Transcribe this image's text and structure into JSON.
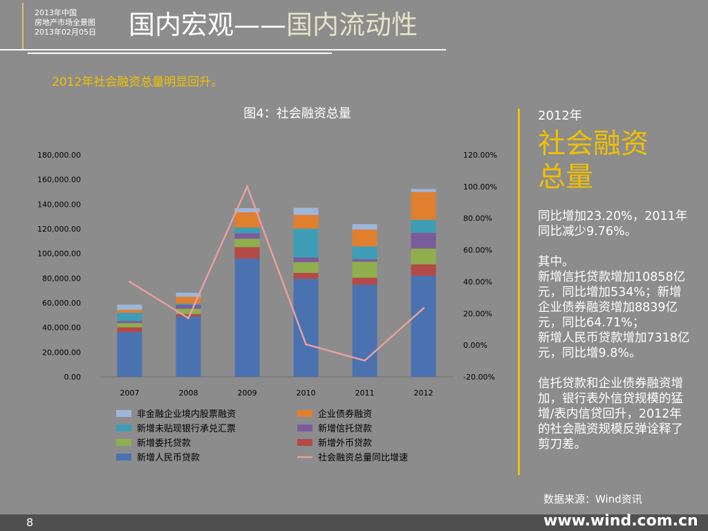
{
  "header": {
    "subtitle_lines": [
      "2013年中国",
      "房地产市场全景图",
      "2013年02月05日"
    ],
    "title_main": "国内宏观",
    "title_dash": "——",
    "title_sub": "国内流动性"
  },
  "headline": "2012年社会融资总量明显回升。",
  "chart_data": {
    "type": "bar",
    "title": "图4：社会融资总量",
    "categories": [
      "2007",
      "2008",
      "2009",
      "2010",
      "2011",
      "2012"
    ],
    "stacked": true,
    "series": [
      {
        "name": "新增人民币贷款",
        "color": "#4a72b0",
        "values": [
          36300,
          49000,
          95900,
          79500,
          74700,
          82000
        ]
      },
      {
        "name": "新增外币贷款",
        "color": "#b34a48",
        "values": [
          3900,
          1900,
          9300,
          4800,
          5700,
          9200
        ]
      },
      {
        "name": "新增委托贷款",
        "color": "#8fae4e",
        "values": [
          3400,
          4300,
          6800,
          8700,
          13000,
          12800
        ]
      },
      {
        "name": "新增信托贷款",
        "color": "#7a5c9a",
        "values": [
          1700,
          3100,
          4400,
          3900,
          2000,
          12800
        ]
      },
      {
        "name": "新增未贴现银行承兑汇票",
        "color": "#3e9eb5",
        "values": [
          6700,
          1100,
          4600,
          23300,
          10300,
          10500
        ]
      },
      {
        "name": "企业债券融资",
        "color": "#e07f2e",
        "values": [
          2300,
          5500,
          12400,
          11100,
          13700,
          22600
        ]
      },
      {
        "name": "非金融企业境内股票融资",
        "color": "#9fb6d9",
        "values": [
          4300,
          3300,
          3400,
          5800,
          4400,
          2500
        ]
      }
    ],
    "line_series": {
      "name": "社会融资总量同比增速",
      "color": "#e8a0a0",
      "axis": "right",
      "values": [
        40.0,
        17.0,
        100.0,
        0.5,
        -9.76,
        23.2
      ]
    },
    "y_left": {
      "min": 0,
      "max": 180000,
      "step": 20000,
      "tick_labels": [
        "0.00",
        "20,000.00",
        "40,000.00",
        "60,000.00",
        "80,000.00",
        "100,000.00",
        "120,000.00",
        "140,000.00",
        "160,000.00",
        "180,000.00"
      ]
    },
    "y_right": {
      "min": -20,
      "max": 120,
      "step": 20,
      "tick_labels": [
        "-20.00%",
        "0.00%",
        "20.00%",
        "40.00%",
        "60.00%",
        "80.00%",
        "100.00%",
        "120.00%"
      ]
    },
    "grid": false,
    "legend_placement": "bottom",
    "legend_order": [
      "非金融企业境内股票融资",
      "企业债券融资",
      "新增未贴现银行承兑汇票",
      "新增信托贷款",
      "新增委托贷款",
      "新增外币贷款",
      "新增人民币贷款",
      "社会融资总量同比增速"
    ]
  },
  "panel": {
    "year": "2012年",
    "big_line1": "社会融资",
    "big_line2": "总量",
    "text": "同比增加23.20%，2011年同比减少9.76%。\n\n其中。\n新增信托贷款增加10858亿元，同比增加534%；新增企业债券融资增加8839亿元，同比64.71%；\n新增人民币贷款增加7318亿元，同比增9.8%。\n\n信托贷款和企业债券融资增加，银行表外信贷规模的猛增/表内信贷回升，2012年的社会融资规模反弹诠释了剪刀差。"
  },
  "source": "数据来源：Wind资讯",
  "footer": {
    "page_number": "8",
    "url": "www.wind.com.cn"
  },
  "colors": {
    "accent": "#f0c000",
    "background": "#8c8c8c",
    "footer": "#4f4f4f"
  }
}
